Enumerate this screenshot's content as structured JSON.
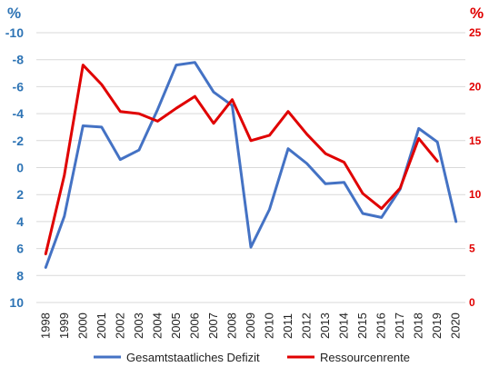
{
  "chart_data": {
    "type": "line",
    "title": "",
    "x": [
      "1998",
      "1999",
      "2000",
      "2001",
      "2002",
      "2003",
      "2004",
      "2005",
      "2006",
      "2007",
      "2008",
      "2009",
      "2010",
      "2011",
      "2012",
      "2013",
      "2014",
      "2015",
      "2016",
      "2017",
      "2018",
      "2019",
      "2020"
    ],
    "y_left": {
      "unit": "%",
      "reversed": true,
      "ylim": [
        -10,
        10
      ],
      "ticks": [
        -10,
        -8,
        -6,
        -4,
        -2,
        0,
        2,
        4,
        6,
        8,
        10
      ],
      "tick_labels": [
        "-10",
        "-8",
        "-6",
        "-4",
        "-2",
        "0",
        "2",
        "4",
        "6",
        "8",
        "10"
      ],
      "color": "#2e74b5"
    },
    "y_right": {
      "unit": "%",
      "ylim": [
        0,
        25
      ],
      "ticks": [
        0,
        5,
        10,
        15,
        20,
        25
      ],
      "tick_labels": [
        "0",
        "5",
        "10",
        "15",
        "20",
        "25"
      ],
      "color": "#e00000"
    },
    "grid": true,
    "legend_position": "bottom",
    "series": [
      {
        "name": "Gesamtstaatliches Defizit",
        "axis": "left",
        "color": "#4472c4",
        "values": [
          7.4,
          3.6,
          -3.1,
          -3.0,
          -0.6,
          -1.3,
          -4.3,
          -7.6,
          -7.8,
          -5.6,
          -4.6,
          5.9,
          3.1,
          -1.4,
          -0.3,
          1.2,
          1.1,
          3.4,
          3.7,
          1.6,
          -2.9,
          -1.9,
          4.0
        ]
      },
      {
        "name": "Ressourcenrente",
        "axis": "right",
        "color": "#e00000",
        "values": [
          4.5,
          11.8,
          22.0,
          20.2,
          17.7,
          17.5,
          16.8,
          18.0,
          19.1,
          16.6,
          18.8,
          15.0,
          15.5,
          17.7,
          15.6,
          13.8,
          13.0,
          10.1,
          8.7,
          10.6,
          15.2,
          13.1,
          null
        ]
      }
    ]
  }
}
